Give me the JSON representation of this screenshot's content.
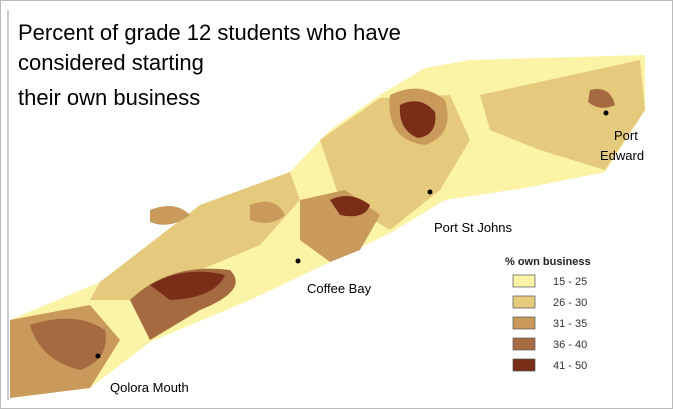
{
  "title_lines": [
    "Percent of grade 12 students who have",
    "considered starting",
    "their own business"
  ],
  "places": [
    {
      "lines": [
        "Port",
        "Edward"
      ]
    },
    {
      "lines": [
        "Port St Johns"
      ]
    },
    {
      "lines": [
        "Coffee Bay"
      ]
    },
    {
      "lines": [
        "Qolora Mouth"
      ]
    }
  ],
  "legend": {
    "title": "% own business",
    "items": [
      {
        "label": "15 - 25",
        "color": "#fbf3a6"
      },
      {
        "label": "26 - 30",
        "color": "#e5c97c"
      },
      {
        "label": "31 - 35",
        "color": "#c99a5c"
      },
      {
        "label": "36 - 40",
        "color": "#a66a40"
      },
      {
        "label": "41 - 50",
        "color": "#7a2e18"
      }
    ]
  }
}
